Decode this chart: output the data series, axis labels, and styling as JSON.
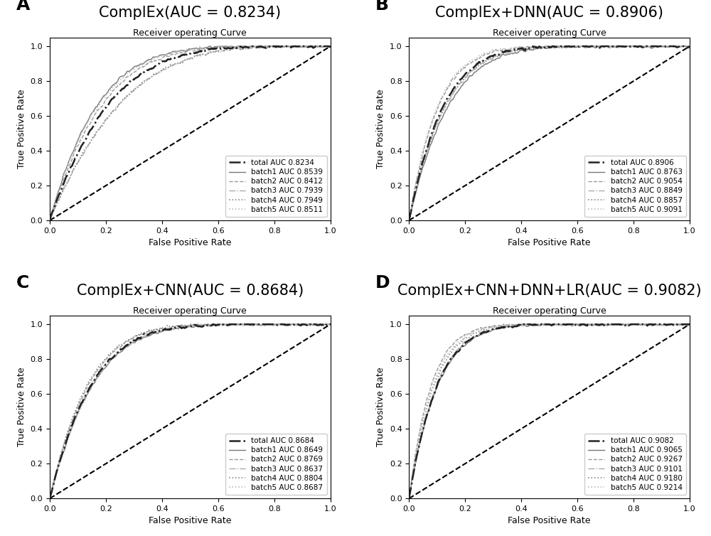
{
  "panels": [
    {
      "label": "A",
      "title": "ComplEx(AUC = 0.8234)",
      "subtitle": "Receiver operating Curve",
      "total_auc": 0.8234,
      "batches": [
        {
          "name": "batch1",
          "auc": 0.8539
        },
        {
          "name": "batch2",
          "auc": 0.8412
        },
        {
          "name": "batch3",
          "auc": 0.7939
        },
        {
          "name": "batch4",
          "auc": 0.7949
        },
        {
          "name": "batch5",
          "auc": 0.8511
        }
      ]
    },
    {
      "label": "B",
      "title": "ComplEx+DNN(AUC = 0.8906)",
      "subtitle": "Receiver operating Curve",
      "total_auc": 0.8906,
      "batches": [
        {
          "name": "batch1",
          "auc": 0.8763
        },
        {
          "name": "batch2",
          "auc": 0.9054
        },
        {
          "name": "batch3",
          "auc": 0.8849
        },
        {
          "name": "batch4",
          "auc": 0.8857
        },
        {
          "name": "batch5",
          "auc": 0.9091
        }
      ]
    },
    {
      "label": "C",
      "title": "ComplEx+CNN(AUC = 0.8684)",
      "subtitle": "Receiver operating Curve",
      "total_auc": 0.8684,
      "batches": [
        {
          "name": "batch1",
          "auc": 0.8649
        },
        {
          "name": "batch2",
          "auc": 0.8769
        },
        {
          "name": "batch3",
          "auc": 0.8637
        },
        {
          "name": "batch4",
          "auc": 0.8804
        },
        {
          "name": "batch5",
          "auc": 0.8687
        }
      ]
    },
    {
      "label": "D",
      "title": "ComplEx+CNN+DNN+LR(AUC = 0.9082)",
      "subtitle": "Receiver operating Curve",
      "total_auc": 0.9082,
      "batches": [
        {
          "name": "batch1",
          "auc": 0.9065
        },
        {
          "name": "batch2",
          "auc": 0.9267
        },
        {
          "name": "batch3",
          "auc": 0.9101
        },
        {
          "name": "batch4",
          "auc": 0.918
        },
        {
          "name": "batch5",
          "auc": 0.9214
        }
      ]
    }
  ],
  "total_line_style": {
    "color": "#222222",
    "linestyle": "-.",
    "linewidth": 1.8
  },
  "batch_line_styles": [
    {
      "color": "#777777",
      "linestyle": "-",
      "linewidth": 1.0
    },
    {
      "color": "#999999",
      "linestyle": "--",
      "linewidth": 1.0
    },
    {
      "color": "#aaaaaa",
      "linestyle": "-.",
      "linewidth": 1.0
    },
    {
      "color": "#888888",
      "linestyle": ":",
      "linewidth": 1.2
    },
    {
      "color": "#bbbbbb",
      "linestyle": ":",
      "linewidth": 1.2
    }
  ],
  "xlabel": "False Positive Rate",
  "ylabel": "True Positive Rate",
  "xlim": [
    0.0,
    1.0
  ],
  "ylim": [
    0.0,
    1.05
  ],
  "xticks": [
    0.0,
    0.2,
    0.4,
    0.6,
    0.8,
    1.0
  ],
  "yticks": [
    0.0,
    0.2,
    0.4,
    0.6,
    0.8,
    1.0
  ],
  "bg_color": "#ffffff",
  "title_fontsize": 15,
  "subtitle_fontsize": 9,
  "label_fontsize": 9,
  "tick_fontsize": 8,
  "legend_fontsize": 7.5
}
